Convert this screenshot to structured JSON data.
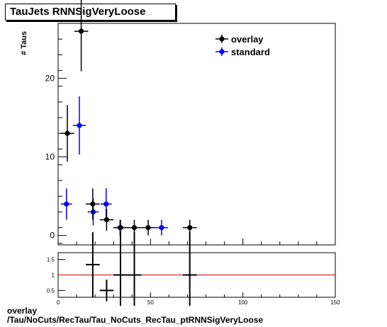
{
  "title": "TauJets RNNSigVeryLoose",
  "footer": {
    "line1": "overlay",
    "line2": "/Tau/NoCuts/RecTau/Tau_NoCuts_RecTau_ptRNNSigVeryLoose"
  },
  "colors": {
    "overlay": "#000000",
    "standard": "#0000ff",
    "ratio_line": "#cc0000"
  },
  "chart_data": [
    {
      "type": "scatter",
      "ylabel": "# Taus",
      "xlim": [
        0,
        150
      ],
      "ylim": [
        -1.2,
        27
      ],
      "yticks": [
        0,
        10,
        20
      ],
      "legend": {
        "placement": "top-right",
        "entries": [
          "overlay",
          "standard"
        ]
      },
      "series": [
        {
          "name": "overlay",
          "points": [
            {
              "x": 5,
              "y": 13,
              "xerr": 3.75,
              "yerr": 3.6
            },
            {
              "x": 12.5,
              "y": 26,
              "xerr": 3.75,
              "yerr": 5.1
            },
            {
              "x": 18.75,
              "y": 4,
              "xerr": 3.75,
              "yerr": 2
            },
            {
              "x": 26.25,
              "y": 2,
              "xerr": 3.75,
              "yerr": 1.4
            },
            {
              "x": 33.75,
              "y": 1,
              "xerr": 3.75,
              "yerr": 1
            },
            {
              "x": 41.25,
              "y": 1,
              "xerr": 3.75,
              "yerr": 1
            },
            {
              "x": 48.75,
              "y": 1,
              "xerr": 3.75,
              "yerr": 1
            },
            {
              "x": 71.25,
              "y": 1,
              "xerr": 3.75,
              "yerr": 1
            }
          ]
        },
        {
          "name": "standard",
          "points": [
            {
              "x": 4.5,
              "y": 4,
              "xerr": 3,
              "yerr": 2
            },
            {
              "x": 11.5,
              "y": 14,
              "xerr": 3.5,
              "yerr": 3.7
            },
            {
              "x": 19,
              "y": 3,
              "xerr": 3,
              "yerr": 1.7
            },
            {
              "x": 26,
              "y": 4,
              "xerr": 3,
              "yerr": 2
            },
            {
              "x": 33.5,
              "y": 1,
              "xerr": 3,
              "yerr": 1
            },
            {
              "x": 56,
              "y": 1,
              "xerr": 3.5,
              "yerr": 1
            }
          ]
        }
      ]
    },
    {
      "type": "scatter",
      "xlim": [
        0,
        150
      ],
      "ylim": [
        0.28,
        1.72
      ],
      "yticks": [
        0.5,
        1,
        1.5
      ],
      "xticks": [
        0,
        50,
        100,
        150
      ],
      "reference_line": 1,
      "series": [
        {
          "name": "overlay",
          "points": [
            {
              "x": 18.75,
              "y": 1.333,
              "xerr": 3.75,
              "yerr": 1.05
            },
            {
              "x": 26.25,
              "y": 0.5,
              "xerr": 3.75,
              "yerr": 0.35
            },
            {
              "x": 33.75,
              "y": 1,
              "xerr": 3.75,
              "yerr": 1.4
            },
            {
              "x": 41.25,
              "y": 1,
              "xerr": 3.75,
              "yerr": 1.4
            },
            {
              "x": 71.25,
              "y": 1,
              "xerr": 3.75,
              "yerr": 1.4
            }
          ]
        }
      ]
    }
  ]
}
